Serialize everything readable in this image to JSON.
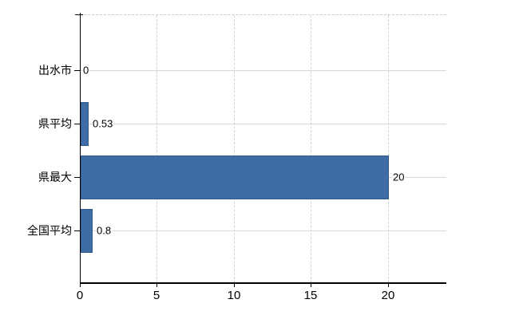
{
  "chart_data": {
    "type": "bar",
    "orientation": "horizontal",
    "title": "",
    "xlabel": "",
    "ylabel": "",
    "categories": [
      "出水市",
      "県平均",
      "県最大",
      "全国平均"
    ],
    "values": [
      0,
      0.53,
      20,
      0.8
    ],
    "value_labels": [
      "0",
      "0.53",
      "20",
      "0.8"
    ],
    "x_ticks": [
      0,
      5,
      10,
      15,
      20
    ],
    "x_tick_labels": [
      "0",
      "5",
      "10",
      "15",
      "20"
    ],
    "xlim": [
      0,
      23.8
    ],
    "grid": true,
    "legend": false,
    "colors": {
      "bar_fill": "#3e6da6",
      "bar_border": "#30588b",
      "h_gridline": "#d3dbd3",
      "v_gridline": "#cfd6cf",
      "top_border": "#cccccc",
      "axis": "#000000",
      "text": "#000000",
      "background": "#ffffff"
    }
  }
}
